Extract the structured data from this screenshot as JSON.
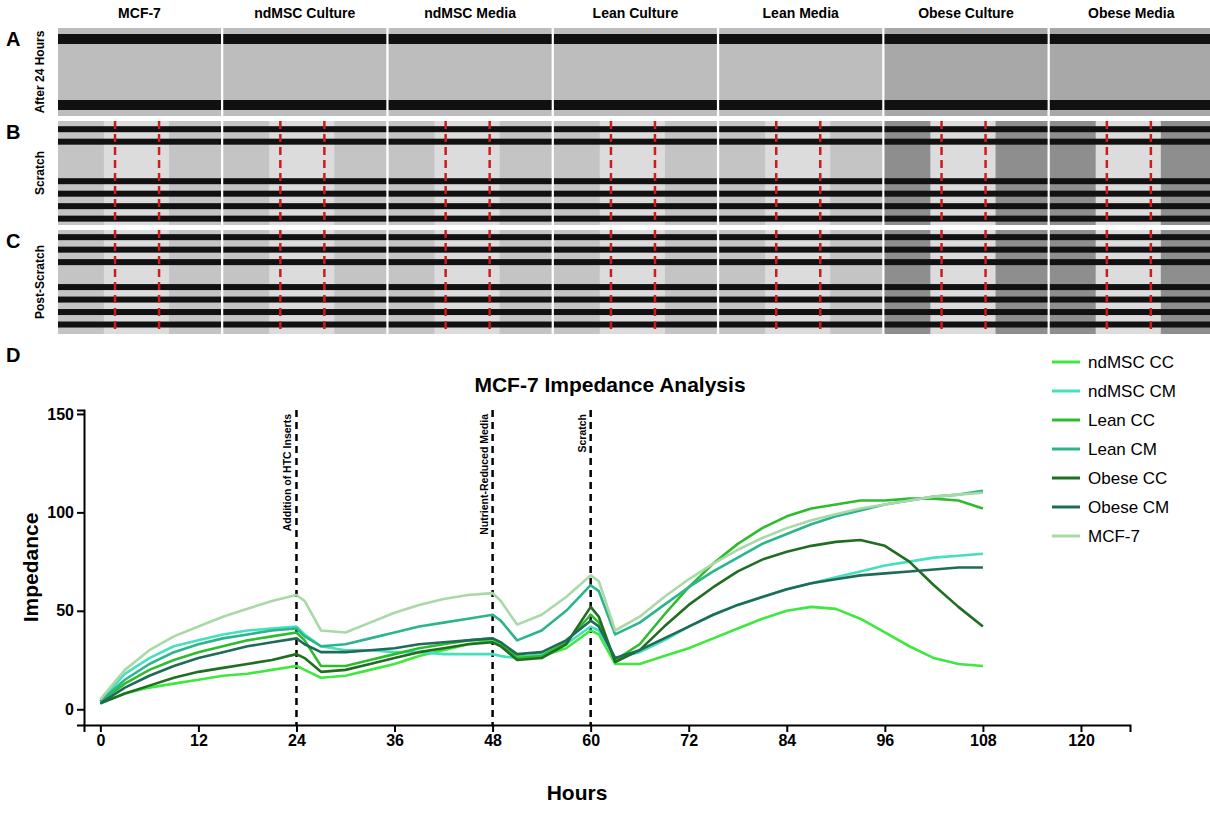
{
  "chart_data": {
    "type": "line",
    "title": "MCF-7 Impedance Analysis",
    "x_label": "Hours",
    "y_label": "Impedance",
    "x": [
      0,
      3,
      6,
      9,
      12,
      15,
      18,
      21,
      24,
      25,
      27,
      30,
      33,
      36,
      39,
      42,
      45,
      48,
      49,
      51,
      54,
      57,
      60,
      61,
      63,
      66,
      69,
      72,
      75,
      78,
      81,
      84,
      87,
      90,
      93,
      96,
      99,
      102,
      105,
      108
    ],
    "series": [
      {
        "name": "ndMSC CC",
        "color": "#3ee83e",
        "values": [
          3,
          8,
          11,
          13,
          15,
          17,
          18,
          20,
          22,
          20,
          16,
          17,
          20,
          23,
          27,
          30,
          33,
          35,
          33,
          27,
          27,
          31,
          40,
          38,
          23,
          23,
          27,
          31,
          36,
          41,
          46,
          50,
          52,
          51,
          46,
          39,
          32,
          26,
          23,
          22
        ]
      },
      {
        "name": "ndMSC CM",
        "color": "#45e0bd",
        "values": [
          4,
          18,
          26,
          32,
          35,
          38,
          40,
          41,
          42,
          38,
          32,
          30,
          30,
          29,
          29,
          28,
          28,
          28,
          27,
          26,
          28,
          33,
          42,
          40,
          26,
          29,
          35,
          42,
          48,
          53,
          57,
          61,
          64,
          67,
          70,
          73,
          75,
          77,
          78,
          79
        ]
      },
      {
        "name": "Lean CC",
        "color": "#2ebc2e",
        "values": [
          4,
          13,
          20,
          25,
          29,
          32,
          35,
          37,
          39,
          35,
          22,
          22,
          25,
          28,
          31,
          33,
          35,
          36,
          34,
          26,
          27,
          34,
          48,
          44,
          25,
          33,
          48,
          62,
          74,
          84,
          92,
          98,
          102,
          104,
          106,
          106,
          107,
          107,
          106,
          102
        ]
      },
      {
        "name": "Lean CM",
        "color": "#2cb58c",
        "values": [
          4,
          15,
          23,
          29,
          33,
          36,
          38,
          40,
          41,
          37,
          32,
          33,
          36,
          39,
          42,
          44,
          46,
          48,
          45,
          35,
          40,
          50,
          63,
          60,
          38,
          44,
          53,
          62,
          70,
          77,
          84,
          89,
          94,
          98,
          101,
          104,
          106,
          108,
          109,
          111
        ]
      },
      {
        "name": "Obese CC",
        "color": "#1f6e22",
        "values": [
          3,
          8,
          12,
          16,
          19,
          21,
          23,
          25,
          28,
          26,
          19,
          20,
          23,
          26,
          29,
          31,
          33,
          34,
          32,
          25,
          26,
          33,
          52,
          47,
          24,
          30,
          42,
          53,
          62,
          70,
          76,
          80,
          83,
          85,
          86,
          83,
          75,
          63,
          52,
          42
        ]
      },
      {
        "name": "Obese CM",
        "color": "#1f6b58",
        "values": [
          3,
          11,
          17,
          22,
          26,
          29,
          32,
          34,
          36,
          33,
          29,
          29,
          30,
          31,
          33,
          34,
          35,
          36,
          34,
          28,
          29,
          35,
          45,
          42,
          26,
          30,
          36,
          42,
          48,
          53,
          57,
          61,
          64,
          66,
          68,
          69,
          70,
          71,
          72,
          72
        ]
      },
      {
        "name": "MCF-7",
        "color": "#a9d9a6",
        "values": [
          5,
          20,
          30,
          37,
          42,
          47,
          51,
          55,
          58,
          55,
          40,
          39,
          44,
          49,
          53,
          56,
          58,
          59,
          55,
          43,
          48,
          57,
          68,
          65,
          40,
          47,
          57,
          66,
          74,
          81,
          87,
          92,
          96,
          99,
          102,
          104,
          106,
          108,
          109,
          110
        ]
      }
    ],
    "xlim": [
      -2,
      126
    ],
    "xticks": [
      0,
      12,
      24,
      36,
      48,
      60,
      72,
      84,
      96,
      108,
      120
    ],
    "ylim": [
      -8,
      152
    ],
    "yticks": [
      0,
      50,
      100,
      150
    ],
    "annotations": [
      {
        "x": 24,
        "text": "Addition of HTC Inserts"
      },
      {
        "x": 48,
        "text": "Nutrient-Reduced Media"
      },
      {
        "x": 60,
        "text": "Scratch"
      }
    ],
    "grid": false,
    "legend": "right"
  },
  "figure": {
    "columns": [
      "MCF-7",
      "ndMSC Culture",
      "ndMSC Media",
      "Lean Culture",
      "Lean Media",
      "Obese Culture",
      "Obese Media"
    ],
    "rows": [
      {
        "letter": "A",
        "label": "After 24 Hours"
      },
      {
        "letter": "B",
        "label": "Scratch"
      },
      {
        "letter": "C",
        "label": "Post-Scratch"
      }
    ],
    "chart_panel": "D"
  }
}
